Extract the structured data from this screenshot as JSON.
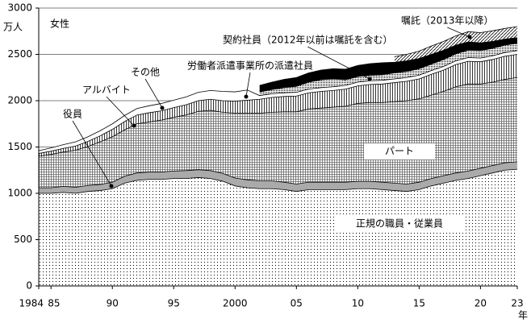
{
  "chart_data": {
    "type": "stacked-area",
    "y_unit": "万人",
    "x_unit": "年",
    "panel_label": "女性",
    "x": [
      1984,
      1985,
      1986,
      1987,
      1988,
      1989,
      1990,
      1991,
      1992,
      1993,
      1994,
      1995,
      1996,
      1997,
      1998,
      1999,
      2000,
      2001,
      2002,
      2003,
      2004,
      2005,
      2006,
      2007,
      2008,
      2009,
      2010,
      2011,
      2012,
      2013,
      2014,
      2015,
      2016,
      2017,
      2018,
      2019,
      2020,
      2021,
      2022,
      2023
    ],
    "xlim": [
      1984,
      2023
    ],
    "xticks": [
      {
        "value": 1984,
        "label": "1984"
      },
      {
        "value": 1985,
        "label": "85"
      },
      {
        "value": 1990,
        "label": "90"
      },
      {
        "value": 1995,
        "label": "95"
      },
      2000,
      {
        "value": 2005,
        "label": "05"
      },
      {
        "value": 2010,
        "label": "10"
      },
      {
        "value": 2015,
        "label": "15"
      },
      {
        "value": 2020,
        "label": "20"
      },
      {
        "value": 2023,
        "label": "23"
      }
    ],
    "ylim": [
      0,
      3000
    ],
    "yticks": [
      0,
      500,
      1000,
      1500,
      2000,
      2500,
      3000
    ],
    "grid": true,
    "series": [
      {
        "name": "正規の職員・従業員",
        "color": "#000000",
        "pattern": "dots",
        "values": [
          1000,
          1000,
          1010,
          1000,
          1020,
          1030,
          1050,
          1110,
          1140,
          1150,
          1150,
          1160,
          1160,
          1170,
          1160,
          1130,
          1080,
          1060,
          1050,
          1050,
          1040,
          1020,
          1040,
          1040,
          1040,
          1040,
          1050,
          1050,
          1040,
          1030,
          1020,
          1040,
          1080,
          1110,
          1140,
          1160,
          1190,
          1220,
          1250,
          1260
        ]
      },
      {
        "name": "役員",
        "color": "#aaaaaa",
        "pattern": "solid",
        "values": [
          60,
          60,
          65,
          65,
          65,
          65,
          70,
          75,
          80,
          80,
          80,
          80,
          85,
          85,
          85,
          85,
          85,
          85,
          85,
          85,
          80,
          80,
          80,
          80,
          80,
          80,
          80,
          80,
          80,
          80,
          80,
          80,
          80,
          80,
          80,
          80,
          80,
          80,
          80,
          80
        ]
      },
      {
        "name": "パート",
        "color": "#555555",
        "pattern": "grid",
        "values": [
          340,
          360,
          370,
          400,
          420,
          460,
          490,
          500,
          530,
          540,
          560,
          580,
          600,
          630,
          650,
          660,
          700,
          720,
          730,
          740,
          760,
          780,
          790,
          800,
          810,
          820,
          840,
          850,
          860,
          880,
          900,
          900,
          900,
          910,
          930,
          940,
          910,
          900,
          900,
          910
        ]
      },
      {
        "name": "アルバイト",
        "color": "#333333",
        "pattern": "vertical",
        "values": [
          30,
          35,
          40,
          45,
          55,
          65,
          80,
          90,
          95,
          100,
          100,
          105,
          110,
          115,
          120,
          125,
          130,
          140,
          150,
          160,
          165,
          170,
          175,
          180,
          180,
          185,
          190,
          195,
          200,
          205,
          210,
          215,
          225,
          230,
          240,
          245,
          240,
          245,
          250,
          250
        ]
      },
      {
        "name": "その他",
        "color": "#ffffff",
        "pattern": "solid",
        "values": [
          30,
          35,
          40,
          45,
          50,
          55,
          60,
          65,
          70,
          75,
          80,
          80,
          85,
          90,
          95,
          100,
          100,
          110,
          40,
          40,
          40,
          40,
          40,
          40,
          40,
          40,
          40,
          40,
          40,
          40,
          40,
          40,
          40,
          40,
          40,
          40,
          40,
          40,
          40,
          40
        ]
      },
      {
        "name": "労働者派遣事業所の派遣社員",
        "color": "#000000",
        "pattern": "dense-dots",
        "values": [
          null,
          null,
          null,
          null,
          null,
          null,
          null,
          null,
          null,
          null,
          null,
          null,
          null,
          null,
          null,
          null,
          null,
          null,
          40,
          45,
          55,
          65,
          75,
          85,
          85,
          60,
          60,
          60,
          60,
          65,
          65,
          70,
          70,
          75,
          75,
          80,
          80,
          80,
          80,
          80
        ]
      },
      {
        "name": "契約社員（2012年以前は嘱託を含む）",
        "color": "#000000",
        "pattern": "solid",
        "values": [
          null,
          null,
          null,
          null,
          null,
          null,
          null,
          null,
          null,
          null,
          null,
          null,
          null,
          null,
          null,
          null,
          null,
          null,
          70,
          80,
          90,
          95,
          100,
          105,
          110,
          115,
          120,
          125,
          130,
          115,
          115,
          110,
          105,
          100,
          95,
          90,
          85,
          75,
          65,
          60
        ]
      },
      {
        "name": "嘱託（2013年以降）",
        "color": "#000000",
        "pattern": "diagonal",
        "values": [
          null,
          null,
          null,
          null,
          null,
          null,
          null,
          null,
          null,
          null,
          null,
          null,
          null,
          null,
          null,
          null,
          null,
          null,
          null,
          null,
          null,
          null,
          null,
          null,
          null,
          null,
          null,
          null,
          null,
          60,
          70,
          80,
          90,
          95,
          100,
          110,
          110,
          115,
          115,
          120
        ]
      }
    ]
  }
}
